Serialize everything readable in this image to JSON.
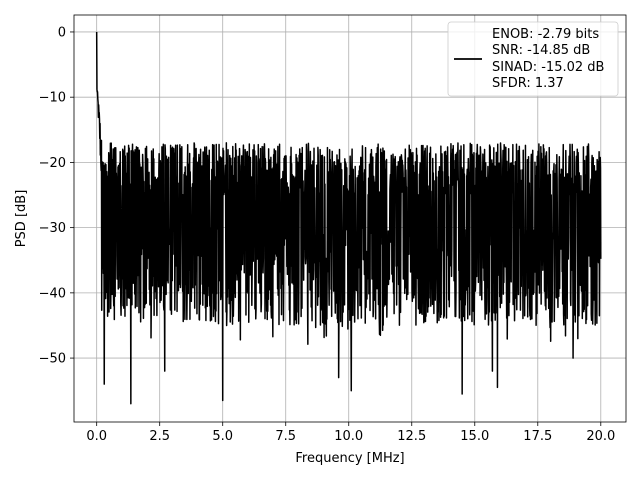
{
  "chart_data": {
    "type": "line",
    "xlabel": "Frequency [MHz]",
    "ylabel": "PSD [dB]",
    "xlim": [
      -0.9,
      21.0
    ],
    "ylim": [
      -59.8,
      2.6
    ],
    "xticks": [
      0.0,
      2.5,
      5.0,
      7.5,
      10.0,
      12.5,
      15.0,
      17.5,
      20.0
    ],
    "xtick_labels": [
      "0.0",
      "2.5",
      "5.0",
      "7.5",
      "10.0",
      "12.5",
      "15.0",
      "17.5",
      "20.0"
    ],
    "yticks": [
      0,
      -10,
      -20,
      -30,
      -40,
      -50
    ],
    "ytick_labels": [
      "0",
      "−10",
      "−20",
      "−30",
      "−40",
      "−50"
    ],
    "grid": true,
    "legend": {
      "placement": "upper right",
      "entries": [
        "ENOB: -2.79 bits",
        "SNR: -14.85 dB",
        "SINAD: -15.02 dB",
        "SFDR: 1.37"
      ]
    },
    "series": [
      {
        "color": "#000000",
        "x_range": [
          0.0,
          20.0
        ],
        "peak": {
          "x": 0.0,
          "y": 0.0
        },
        "envelope": {
          "upper": -17,
          "typical_mean": -27,
          "lower_typical": -36
        },
        "notable_dips": [
          {
            "x": 0.3,
            "y": -54
          },
          {
            "x": 1.35,
            "y": -57
          },
          {
            "x": 2.7,
            "y": -52
          },
          {
            "x": 5.0,
            "y": -56.5
          },
          {
            "x": 9.6,
            "y": -53
          },
          {
            "x": 10.1,
            "y": -55
          },
          {
            "x": 14.5,
            "y": -55.5
          },
          {
            "x": 15.7,
            "y": -52
          },
          {
            "x": 15.9,
            "y": -54.5
          },
          {
            "x": 18.9,
            "y": -50
          }
        ]
      }
    ]
  }
}
